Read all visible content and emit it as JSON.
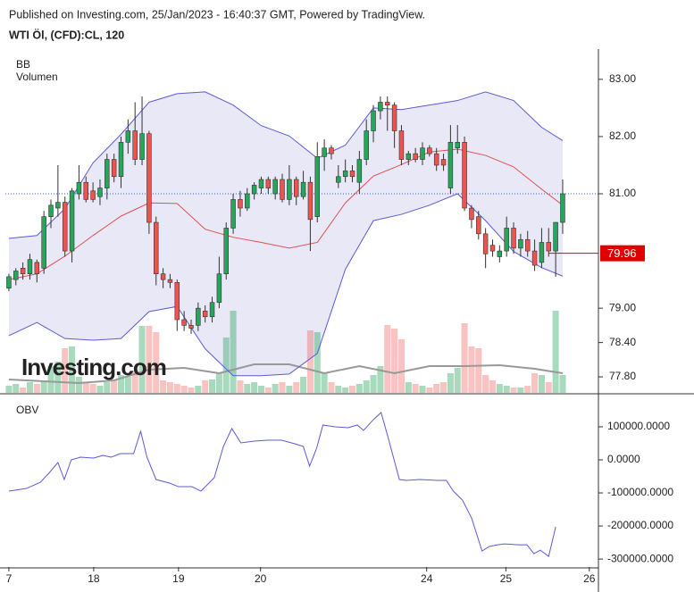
{
  "header": {
    "published": "Published on Investing.com, 25/Jan/2023 - 16:40:37 GMT, Powered by TradingView.",
    "symbol": "WTI Öl, (CFD):CL, 120"
  },
  "watermark": "Investing.com",
  "chart_data": {
    "type": "candlestick",
    "legend": [
      "BB",
      "Volumen"
    ],
    "candle_colors": {
      "up": "#26a65b",
      "down": "#ef5350"
    },
    "volume_colors": {
      "up": "rgba(38,166,91,0.4)",
      "down": "rgba(239,83,80,0.35)"
    },
    "xlim": [
      -0.5,
      84.1
    ],
    "xticks": [
      {
        "value": 0,
        "label": "7"
      },
      {
        "value": 12.1,
        "label": "18"
      },
      {
        "value": 24.2,
        "label": "19"
      },
      {
        "value": 35.9,
        "label": "20"
      },
      {
        "value": 59.6,
        "label": "24"
      },
      {
        "value": 70.9,
        "label": "25"
      },
      {
        "value": 82.8,
        "label": "26"
      }
    ],
    "ylim": [
      77.52,
      83.45
    ],
    "yticks": [
      {
        "value": 83,
        "label": "83.00"
      },
      {
        "value": 82,
        "label": "82.00"
      },
      {
        "value": 81,
        "label": "81.00"
      },
      {
        "value": 79,
        "label": "79.00"
      },
      {
        "value": 78.4,
        "label": "78.40"
      },
      {
        "value": 77.8,
        "label": "77.80"
      }
    ],
    "marker_price": 79.96,
    "candles": [
      [
        79.35,
        79.6,
        79.3,
        79.55
      ],
      [
        79.5,
        79.7,
        79.4,
        79.65
      ],
      [
        79.7,
        79.8,
        79.5,
        79.6
      ],
      [
        79.6,
        79.95,
        79.5,
        79.85
      ],
      [
        79.8,
        79.85,
        79.45,
        79.6
      ],
      [
        79.7,
        80.7,
        79.6,
        80.6
      ],
      [
        80.6,
        80.9,
        80.4,
        80.8
      ],
      [
        80.75,
        81.5,
        80.6,
        80.85
      ],
      [
        80.85,
        80.95,
        79.9,
        80.0
      ],
      [
        80.0,
        81.1,
        79.8,
        81.05
      ],
      [
        81.0,
        81.5,
        80.9,
        81.2
      ],
      [
        81.2,
        81.3,
        80.85,
        80.9
      ],
      [
        81.05,
        81.2,
        80.85,
        80.9
      ],
      [
        80.95,
        81.25,
        80.8,
        81.1
      ],
      [
        81.1,
        81.7,
        80.9,
        81.6
      ],
      [
        81.6,
        81.7,
        81.2,
        81.3
      ],
      [
        81.3,
        82.0,
        81.1,
        81.9
      ],
      [
        81.9,
        82.3,
        81.7,
        82.1
      ],
      [
        82.1,
        82.6,
        81.5,
        81.6
      ],
      [
        81.6,
        82.7,
        81.5,
        82.05
      ],
      [
        82.05,
        82.1,
        80.3,
        80.5
      ],
      [
        80.5,
        80.6,
        79.4,
        79.6
      ],
      [
        79.6,
        79.7,
        79.35,
        79.5
      ],
      [
        79.5,
        79.6,
        79.35,
        79.45
      ],
      [
        79.45,
        79.5,
        78.6,
        78.8
      ],
      [
        78.8,
        78.95,
        78.6,
        78.7
      ],
      [
        78.7,
        78.8,
        78.55,
        78.65
      ],
      [
        78.7,
        79.1,
        78.6,
        79.0
      ],
      [
        78.95,
        79.05,
        78.75,
        78.85
      ],
      [
        78.85,
        79.2,
        78.75,
        79.1
      ],
      [
        79.1,
        79.9,
        79.0,
        79.6
      ],
      [
        79.6,
        80.5,
        79.5,
        80.4
      ],
      [
        80.4,
        81.0,
        80.3,
        80.9
      ],
      [
        80.9,
        81.05,
        80.6,
        80.75
      ],
      [
        80.75,
        81.1,
        80.7,
        81.0
      ],
      [
        81.0,
        81.2,
        80.9,
        81.15
      ],
      [
        81.1,
        81.3,
        81.0,
        81.25
      ],
      [
        81.25,
        81.3,
        81.0,
        81.1
      ],
      [
        81.0,
        81.3,
        80.9,
        81.25
      ],
      [
        81.25,
        81.35,
        80.85,
        80.9
      ],
      [
        80.9,
        81.5,
        80.8,
        81.25
      ],
      [
        81.25,
        81.3,
        80.8,
        80.95
      ],
      [
        80.95,
        81.4,
        80.9,
        81.2
      ],
      [
        81.2,
        81.3,
        80.0,
        80.55
      ],
      [
        80.6,
        81.9,
        80.5,
        81.65
      ],
      [
        81.65,
        81.95,
        81.4,
        81.8
      ],
      [
        81.8,
        81.85,
        81.6,
        81.7
      ],
      [
        81.2,
        81.5,
        81.1,
        81.3
      ],
      [
        81.3,
        81.6,
        81.2,
        81.4
      ],
      [
        81.4,
        81.5,
        81.2,
        81.3
      ],
      [
        81.2,
        81.75,
        81.0,
        81.6
      ],
      [
        81.6,
        82.3,
        81.5,
        82.1
      ],
      [
        82.1,
        82.55,
        81.9,
        82.45
      ],
      [
        82.45,
        82.7,
        82.3,
        82.6
      ],
      [
        82.6,
        82.7,
        82.1,
        82.55
      ],
      [
        82.55,
        82.6,
        81.8,
        82.1
      ],
      [
        82.1,
        82.2,
        81.5,
        81.6
      ],
      [
        81.6,
        81.75,
        81.5,
        81.7
      ],
      [
        81.7,
        81.8,
        81.55,
        81.6
      ],
      [
        81.6,
        81.9,
        81.5,
        81.8
      ],
      [
        81.8,
        81.85,
        81.65,
        81.7
      ],
      [
        81.7,
        81.8,
        81.4,
        81.5
      ],
      [
        81.6,
        81.7,
        81.4,
        81.5
      ],
      [
        81.1,
        82.2,
        81.0,
        81.9
      ],
      [
        81.8,
        82.2,
        81.7,
        81.9
      ],
      [
        81.9,
        82.0,
        80.7,
        80.75
      ],
      [
        80.75,
        80.8,
        80.4,
        80.55
      ],
      [
        80.6,
        80.7,
        80.2,
        80.3
      ],
      [
        80.3,
        80.4,
        79.7,
        79.95
      ],
      [
        80.1,
        80.2,
        79.9,
        80.0
      ],
      [
        79.9,
        80.1,
        79.8,
        80.0
      ],
      [
        80.0,
        80.6,
        79.9,
        80.4
      ],
      [
        80.4,
        80.5,
        79.95,
        80.05
      ],
      [
        80.05,
        80.3,
        79.9,
        80.2
      ],
      [
        80.2,
        80.35,
        79.9,
        80.0
      ],
      [
        80.0,
        80.2,
        79.65,
        79.75
      ],
      [
        79.8,
        80.4,
        79.7,
        80.15
      ],
      [
        80.15,
        80.4,
        79.9,
        80.0
      ],
      [
        80.0,
        80.5,
        79.55,
        80.5
      ],
      [
        80.5,
        81.25,
        80.3,
        81.0
      ]
    ],
    "vlim": [
      0,
      100
    ],
    "volume": [
      8,
      10,
      6,
      12,
      10,
      14,
      30,
      35,
      50,
      52,
      18,
      12,
      10,
      8,
      12,
      15,
      20,
      18,
      25,
      75,
      75,
      68,
      14,
      12,
      10,
      8,
      6,
      8,
      14,
      15,
      22,
      62,
      92,
      14,
      10,
      12,
      8,
      6,
      10,
      12,
      8,
      12,
      18,
      70,
      68,
      22,
      12,
      8,
      6,
      8,
      10,
      14,
      20,
      30,
      76,
      72,
      60,
      12,
      10,
      8,
      6,
      10,
      12,
      22,
      28,
      78,
      52,
      50,
      20,
      14,
      10,
      8,
      6,
      6,
      8,
      22,
      20,
      12,
      92,
      20
    ],
    "volume_ma": {
      "color": "#999999",
      "x": [
        0,
        5,
        10,
        15,
        20,
        25,
        30,
        35,
        40,
        45,
        50,
        55,
        60,
        65,
        70,
        75,
        79
      ],
      "values": [
        15,
        13,
        11,
        14,
        26,
        28,
        22,
        32,
        32,
        22,
        30,
        22,
        30,
        30,
        31,
        27,
        22
      ]
    },
    "bb": {
      "x": [
        0,
        4,
        8,
        12,
        16,
        20,
        24,
        28,
        32,
        36,
        40,
        44,
        48,
        52,
        56,
        60,
        64,
        68,
        72,
        76,
        79
      ],
      "upper": {
        "color": "#5b5bd6",
        "values": [
          80.22,
          80.27,
          80.74,
          81.54,
          82.04,
          82.6,
          82.75,
          82.78,
          82.55,
          82.19,
          82.01,
          81.62,
          81.85,
          82.5,
          82.47,
          82.55,
          82.63,
          82.78,
          82.63,
          82.16,
          81.93
        ]
      },
      "middle": {
        "color": "#e05050",
        "values": [
          79.5,
          79.6,
          79.91,
          80.27,
          80.61,
          80.84,
          80.83,
          80.38,
          80.24,
          80.15,
          80.05,
          80.15,
          80.84,
          81.31,
          81.51,
          81.73,
          81.78,
          81.67,
          81.47,
          81.08,
          80.8
        ]
      },
      "lower": {
        "color": "#5b5bd6",
        "values": [
          78.52,
          78.75,
          78.47,
          78.44,
          78.47,
          78.94,
          79.03,
          78.29,
          77.82,
          77.82,
          77.85,
          78.21,
          79.68,
          80.53,
          80.64,
          80.8,
          81.0,
          80.53,
          79.99,
          79.71,
          79.56
        ]
      },
      "fill": "rgba(120,120,200,0.17)"
    },
    "obv": {
      "title": "OBV",
      "color": "#5b5bd6",
      "ylim": [
        -324000,
        189000
      ],
      "yticks": [
        {
          "value": 100000,
          "label": "100000.0000"
        },
        {
          "value": 0,
          "label": "0.0000"
        },
        {
          "value": -100000,
          "label": "-100000.0000"
        },
        {
          "value": -200000,
          "label": "-200000.0000"
        },
        {
          "value": -300000,
          "label": "-300000.0000"
        }
      ],
      "x": [
        0,
        2.5,
        4.5,
        5.7,
        7,
        7.9,
        8.9,
        10.2,
        12.1,
        13.4,
        14.6,
        15.9,
        17.8,
        18.8,
        19.7,
        21,
        22.9,
        24.2,
        26.1,
        27.4,
        29.3,
        30.6,
        31.8,
        33.1,
        35,
        36.9,
        38.9,
        40.8,
        42,
        42.9,
        43.9,
        44.8,
        46.5,
        48.4,
        49.7,
        50.6,
        52,
        53.1,
        54.1,
        55.7,
        56.7,
        58.6,
        61.1,
        62.4,
        63.4,
        64.7,
        66,
        67.5,
        68.5,
        69.7,
        70.7,
        72.6,
        73.9,
        74.9,
        75.8,
        77,
        78
      ],
      "values": [
        -94600,
        -86500,
        -67600,
        -40500,
        -8100,
        -59500,
        0,
        8100,
        5400,
        13500,
        8100,
        18900,
        18900,
        86500,
        8100,
        -59500,
        -70300,
        -81100,
        -81100,
        -94600,
        -54100,
        40500,
        94600,
        51400,
        56800,
        59500,
        59500,
        48600,
        40500,
        -18900,
        35100,
        105400,
        100000,
        97300,
        105400,
        89200,
        121600,
        143200,
        67600,
        -59500,
        -62200,
        -59500,
        -62200,
        -62200,
        -94600,
        -121600,
        -175700,
        -275700,
        -262200,
        -256800,
        -254100,
        -256800,
        -256800,
        -283800,
        -273000,
        -291900,
        -202700
      ]
    }
  }
}
